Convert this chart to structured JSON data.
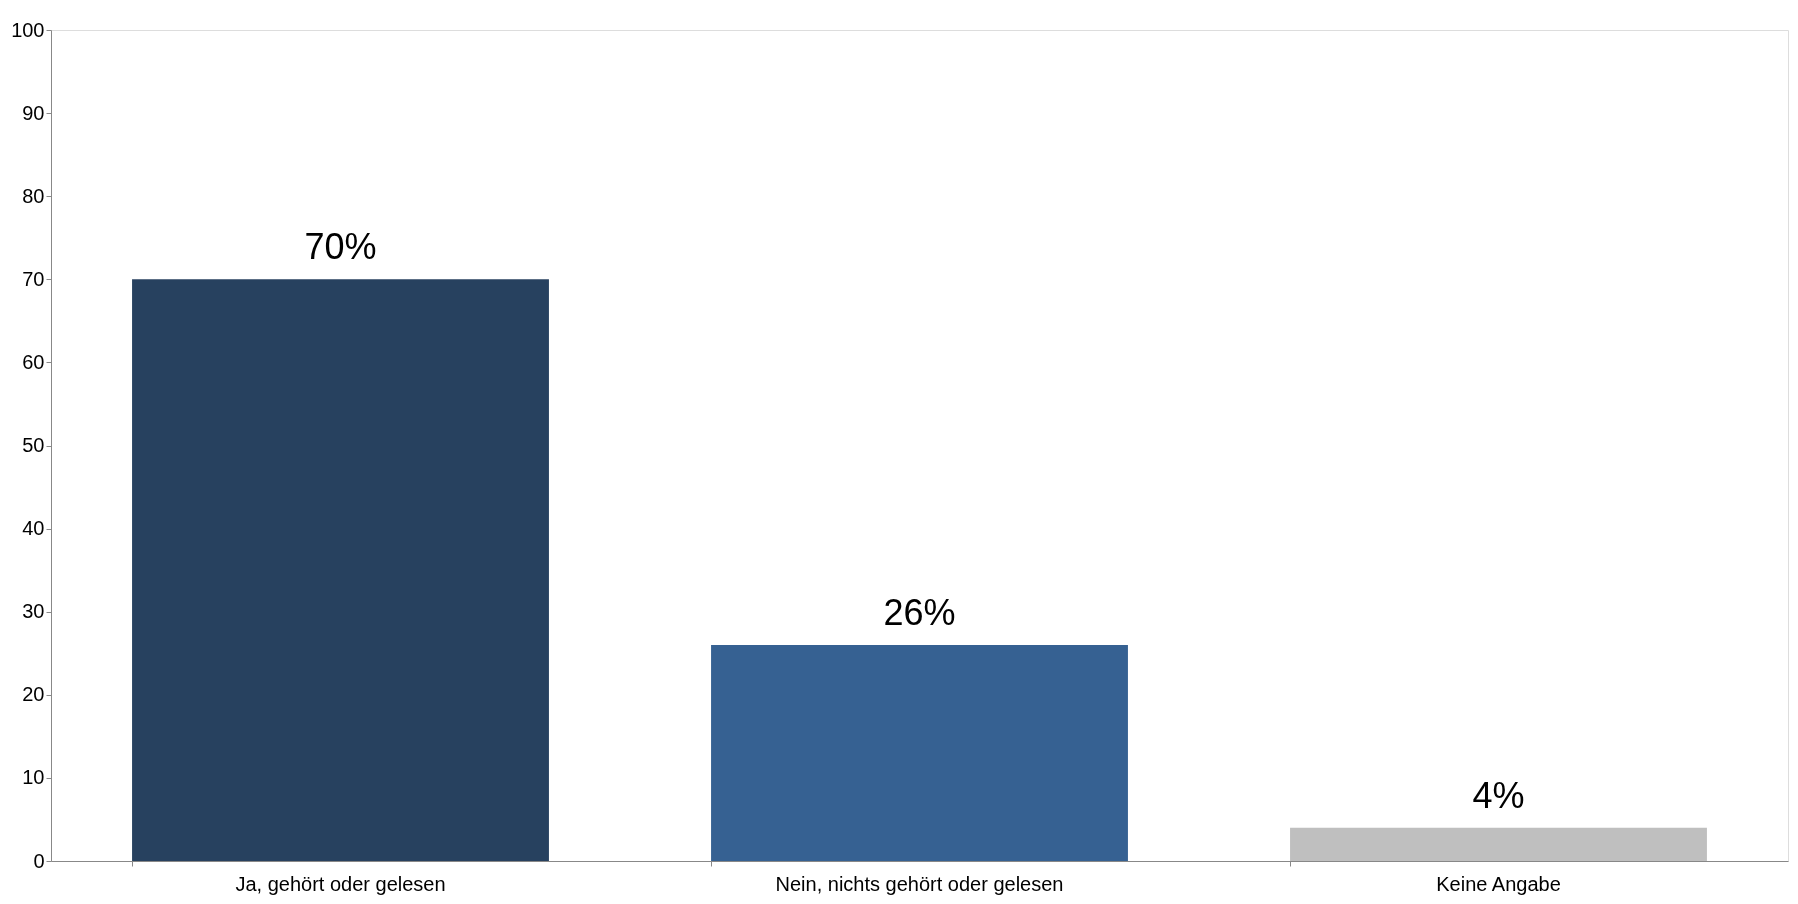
{
  "chart_data": {
    "type": "bar",
    "categories": [
      "Ja, gehört oder gelesen",
      "Nein, nichts gehört oder gelesen",
      "Keine Angabe"
    ],
    "values": [
      70,
      26,
      4
    ],
    "colors": [
      "#27415f",
      "#366192",
      "#bfbfbf"
    ],
    "value_labels": [
      "70%",
      "26%",
      "4%"
    ],
    "ylim": [
      0,
      100
    ],
    "yticks": [
      0,
      10,
      20,
      30,
      40,
      50,
      60,
      70,
      80,
      90,
      100
    ],
    "grid": false
  }
}
